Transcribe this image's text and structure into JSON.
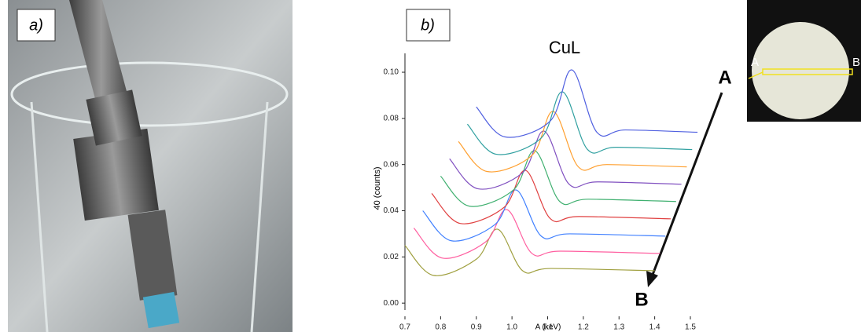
{
  "panel_labels": {
    "a": "a)",
    "b": "b)"
  },
  "chart_data": {
    "type": "line",
    "title": "CuL",
    "xlabel": "A (keV)",
    "ylabel": "40 (counts)",
    "xlim": [
      0.7,
      1.5
    ],
    "ylim": [
      -0.003,
      0.108
    ],
    "xticks": [
      0.7,
      0.8,
      0.9,
      {
        "value": 1.0,
        "label": "1.0"
      },
      1.1,
      1.2,
      1.3,
      1.4,
      1.5
    ],
    "yticks": [
      {
        "value": 0,
        "label": "0.00"
      },
      {
        "value": 0.02,
        "label": "0.02"
      },
      {
        "value": 0.04,
        "label": "0.04"
      },
      {
        "value": 0.06,
        "label": "0.06"
      },
      {
        "value": 0.08,
        "label": "0.08"
      },
      {
        "value": 0.1,
        "label": "0.10"
      }
    ],
    "series": [
      {
        "color": "#a0a040",
        "x": [
          0.7,
          0.78,
          0.9,
          0.96,
          1.03,
          1.11,
          1.4
        ],
        "values": [
          0.025,
          0.012,
          0.019,
          0.032,
          0.014,
          0.015,
          0.014
        ]
      },
      {
        "color": "#ff5fa0",
        "x": [
          0.725,
          0.805,
          0.926,
          0.986,
          1.056,
          1.136,
          1.415
        ],
        "values": [
          0.0325,
          0.0195,
          0.0265,
          0.0405,
          0.0215,
          0.0225,
          0.0215
        ]
      },
      {
        "color": "#4080ff",
        "x": [
          0.75,
          0.83,
          0.952,
          1.012,
          1.082,
          1.162,
          1.43
        ],
        "values": [
          0.04,
          0.027,
          0.034,
          0.049,
          0.029,
          0.03,
          0.029
        ]
      },
      {
        "color": "#e04040",
        "x": [
          0.775,
          0.855,
          0.978,
          1.038,
          1.108,
          1.188,
          1.445
        ],
        "values": [
          0.0475,
          0.0345,
          0.0415,
          0.0575,
          0.0365,
          0.0375,
          0.0365
        ]
      },
      {
        "color": "#40b070",
        "x": [
          0.8,
          0.88,
          1.004,
          1.064,
          1.134,
          1.214,
          1.46
        ],
        "values": [
          0.055,
          0.042,
          0.049,
          0.066,
          0.044,
          0.045,
          0.044
        ]
      },
      {
        "color": "#8050c0",
        "x": [
          0.825,
          0.905,
          1.03,
          1.09,
          1.16,
          1.24,
          1.475
        ],
        "values": [
          0.0625,
          0.0495,
          0.0565,
          0.0745,
          0.0515,
          0.0525,
          0.0515
        ]
      },
      {
        "color": "#ffa030",
        "x": [
          0.85,
          0.93,
          1.056,
          1.116,
          1.186,
          1.266,
          1.49
        ],
        "values": [
          0.07,
          0.057,
          0.064,
          0.083,
          0.059,
          0.06,
          0.059
        ]
      },
      {
        "color": "#30a0a0",
        "x": [
          0.875,
          0.955,
          1.082,
          1.142,
          1.212,
          1.292,
          1.505
        ],
        "values": [
          0.0775,
          0.0645,
          0.0715,
          0.0915,
          0.0665,
          0.0675,
          0.0665
        ]
      },
      {
        "color": "#5060e0",
        "x": [
          0.9,
          0.98,
          1.108,
          1.168,
          1.238,
          1.318,
          1.52
        ],
        "values": [
          0.085,
          0.072,
          0.079,
          0.101,
          0.074,
          0.075,
          0.074
        ]
      }
    ],
    "annotations": {
      "arrow_start": "A",
      "arrow_end": "B",
      "inset_left": "A",
      "inset_right": "B"
    }
  }
}
